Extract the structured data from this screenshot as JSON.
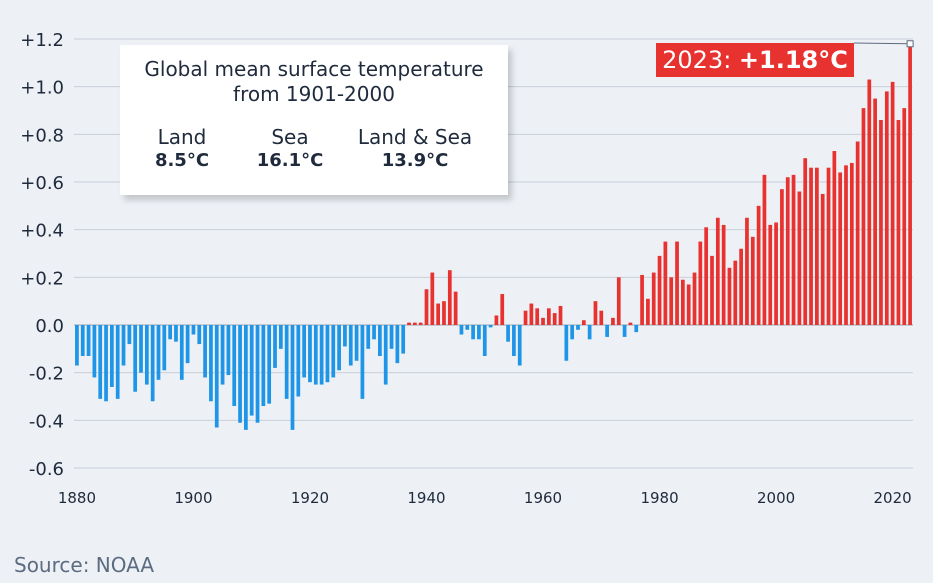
{
  "chart_data": {
    "type": "bar",
    "x": [
      1880,
      1881,
      1882,
      1883,
      1884,
      1885,
      1886,
      1887,
      1888,
      1889,
      1890,
      1891,
      1892,
      1893,
      1894,
      1895,
      1896,
      1897,
      1898,
      1899,
      1900,
      1901,
      1902,
      1903,
      1904,
      1905,
      1906,
      1907,
      1908,
      1909,
      1910,
      1911,
      1912,
      1913,
      1914,
      1915,
      1916,
      1917,
      1918,
      1919,
      1920,
      1921,
      1922,
      1923,
      1924,
      1925,
      1926,
      1927,
      1928,
      1929,
      1930,
      1931,
      1932,
      1933,
      1934,
      1935,
      1936,
      1937,
      1938,
      1939,
      1940,
      1941,
      1942,
      1943,
      1944,
      1945,
      1946,
      1947,
      1948,
      1949,
      1950,
      1951,
      1952,
      1953,
      1954,
      1955,
      1956,
      1957,
      1958,
      1959,
      1960,
      1961,
      1962,
      1963,
      1964,
      1965,
      1966,
      1967,
      1968,
      1969,
      1970,
      1971,
      1972,
      1973,
      1974,
      1975,
      1976,
      1977,
      1978,
      1979,
      1980,
      1981,
      1982,
      1983,
      1984,
      1985,
      1986,
      1987,
      1988,
      1989,
      1990,
      1991,
      1992,
      1993,
      1994,
      1995,
      1996,
      1997,
      1998,
      1999,
      2000,
      2001,
      2002,
      2003,
      2004,
      2005,
      2006,
      2007,
      2008,
      2009,
      2010,
      2011,
      2012,
      2013,
      2014,
      2015,
      2016,
      2017,
      2018,
      2019,
      2020,
      2021,
      2022,
      2023
    ],
    "values": [
      -0.17,
      -0.13,
      -0.13,
      -0.22,
      -0.31,
      -0.32,
      -0.26,
      -0.31,
      -0.17,
      -0.08,
      -0.28,
      -0.2,
      -0.25,
      -0.32,
      -0.23,
      -0.19,
      -0.06,
      -0.07,
      -0.23,
      -0.16,
      -0.04,
      -0.08,
      -0.22,
      -0.32,
      -0.43,
      -0.25,
      -0.21,
      -0.34,
      -0.41,
      -0.44,
      -0.38,
      -0.41,
      -0.34,
      -0.33,
      -0.18,
      -0.1,
      -0.31,
      -0.44,
      -0.3,
      -0.22,
      -0.24,
      -0.25,
      -0.25,
      -0.24,
      -0.22,
      -0.19,
      -0.09,
      -0.17,
      -0.15,
      -0.31,
      -0.1,
      -0.06,
      -0.13,
      -0.25,
      -0.1,
      -0.16,
      -0.12,
      0.01,
      0.01,
      0.01,
      0.15,
      0.22,
      0.09,
      0.1,
      0.23,
      0.14,
      -0.04,
      -0.02,
      -0.06,
      -0.06,
      -0.13,
      -0.01,
      0.04,
      0.13,
      -0.07,
      -0.13,
      -0.17,
      0.06,
      0.09,
      0.07,
      0.03,
      0.07,
      0.05,
      0.08,
      -0.15,
      -0.06,
      -0.02,
      0.02,
      -0.06,
      0.1,
      0.06,
      -0.05,
      0.03,
      0.2,
      -0.05,
      0.01,
      -0.03,
      0.21,
      0.11,
      0.22,
      0.29,
      0.35,
      0.2,
      0.35,
      0.19,
      0.17,
      0.22,
      0.35,
      0.41,
      0.29,
      0.45,
      0.42,
      0.24,
      0.27,
      0.32,
      0.45,
      0.37,
      0.5,
      0.63,
      0.42,
      0.43,
      0.57,
      0.62,
      0.63,
      0.56,
      0.7,
      0.66,
      0.66,
      0.55,
      0.66,
      0.73,
      0.64,
      0.67,
      0.68,
      0.77,
      0.91,
      1.03,
      0.95,
      0.86,
      0.98,
      1.02,
      0.86,
      0.91,
      1.18
    ],
    "xlabel": "",
    "ylabel": "",
    "ylim": [
      -0.6,
      1.2
    ],
    "xlim": [
      1880,
      2023
    ],
    "y_ticks": [
      "+1.2",
      "+1.0",
      "+0.8",
      "+0.6",
      "+0.4",
      "+0.2",
      "0.0",
      "-0.2",
      "-0.4",
      "-0.6"
    ],
    "y_tick_values": [
      1.2,
      1.0,
      0.8,
      0.6,
      0.4,
      0.2,
      0,
      -0.2,
      -0.4,
      -0.6
    ],
    "x_ticks": [
      "1880",
      "1900",
      "1920",
      "1940",
      "1960",
      "1980",
      "2000",
      "2020"
    ],
    "x_tick_values": [
      1880,
      1900,
      1920,
      1940,
      1960,
      1980,
      2000,
      2020
    ],
    "grid": "horizontal",
    "positive_color": "#e8322f",
    "negative_color": "#1e95e6",
    "annotation": {
      "year_label": "2023: ",
      "value_label": "+1.18°C"
    },
    "info_box": {
      "title_line1": "Global mean surface temperature",
      "title_line2": "from 1901-2000",
      "items": [
        {
          "label": "Land",
          "value": "8.5°C"
        },
        {
          "label": "Sea",
          "value": "16.1°C"
        },
        {
          "label": "Land & Sea",
          "value": "13.9°C"
        }
      ]
    }
  },
  "source": "Source: NOAA"
}
